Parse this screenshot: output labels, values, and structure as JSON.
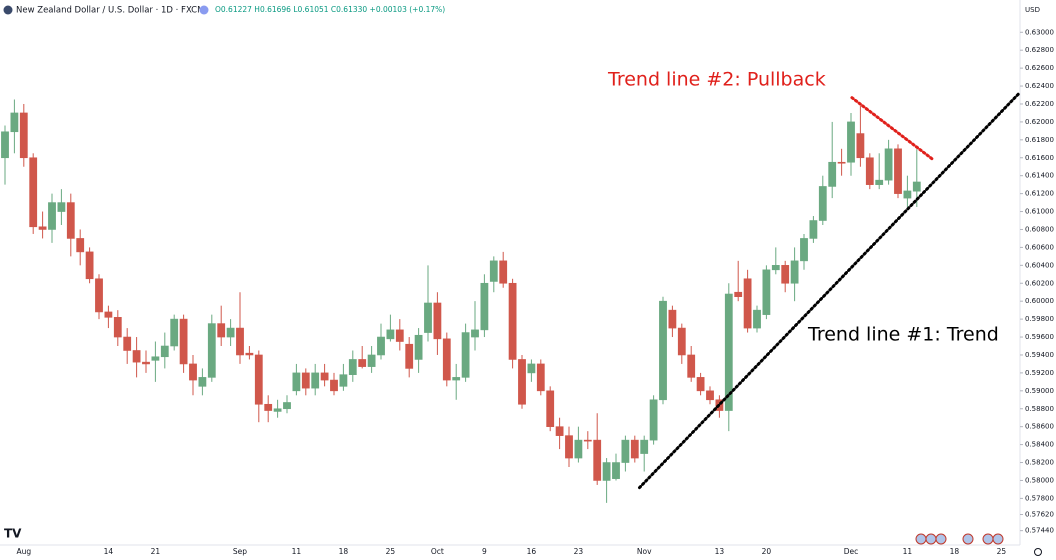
{
  "chart_data": {
    "type": "candlestick",
    "title": "New Zealand Dollar / U.S. Dollar · 1D · FXCM",
    "subtitle": "O0.61227 H0.61696 L0.61051 C0.61330 +0.00103 (+0.17%)",
    "currency": "USD",
    "up_color": "#6aa981",
    "down_color": "#d0574b",
    "grid": false,
    "categories": [
      null,
      null,
      "Aug",
      null,
      null,
      null,
      null,
      null,
      null,
      null,
      null,
      "14",
      null,
      null,
      null,
      null,
      "21",
      null,
      null,
      null,
      null,
      null,
      null,
      null,
      null,
      "Sep",
      null,
      null,
      null,
      null,
      null,
      "11",
      null,
      null,
      null,
      null,
      "18",
      null,
      null,
      null,
      null,
      "25",
      null,
      null,
      null,
      null,
      "Oct",
      null,
      null,
      null,
      null,
      "9",
      null,
      null,
      null,
      null,
      "16",
      null,
      null,
      null,
      null,
      "23",
      null,
      null,
      null,
      null,
      null,
      null,
      "Nov",
      null,
      null,
      null,
      null,
      null,
      null,
      null,
      "13",
      null,
      null,
      null,
      null,
      "20",
      null,
      null,
      null,
      null,
      null,
      null,
      null,
      null,
      "Dec",
      null,
      null,
      null,
      null,
      null,
      "11",
      null,
      null,
      null,
      null,
      "18",
      null,
      null,
      null,
      null,
      "25"
    ],
    "open": [
      0.616,
      0.6189,
      0.621,
      0.616,
      0.6083,
      0.608,
      0.61,
      0.611,
      0.607,
      0.6055,
      0.6025,
      0.5988,
      0.5982,
      0.596,
      0.5945,
      0.5932,
      0.5934,
      0.5938,
      0.595,
      0.598,
      0.593,
      0.5905,
      0.5915,
      0.5975,
      0.596,
      0.597,
      0.5942,
      0.594,
      0.5885,
      0.5877,
      0.588,
      0.59,
      0.592,
      0.5903,
      0.592,
      0.5912,
      0.5905,
      0.5918,
      0.5935,
      0.5927,
      0.594,
      0.5958,
      0.5968,
      0.5952,
      0.5935,
      0.5965,
      0.5998,
      0.5958,
      0.5912,
      0.5915,
      0.596,
      0.5968,
      0.6022,
      0.6045,
      0.602,
      0.5935,
      0.592,
      0.593,
      0.59,
      0.586,
      0.585,
      0.5825,
      0.5845,
      0.5845,
      0.58,
      0.5802,
      0.582,
      0.5845,
      0.583,
      0.5845,
      0.589,
      0.599,
      0.597,
      0.594,
      0.5915,
      0.59,
      0.589,
      0.5878,
      0.601,
      0.6025,
      0.597,
      0.5985,
      0.6035,
      0.604,
      0.602,
      0.6045,
      0.607,
      0.609,
      0.6128,
      0.6155,
      0.6155,
      0.6187,
      0.616,
      0.613,
      0.6135,
      0.617,
      0.6115,
      0.61227,
      null,
      null,
      null,
      null,
      null,
      null,
      null,
      null,
      null
    ],
    "high": [
      0.6196,
      0.6225,
      0.622,
      0.6165,
      0.61,
      0.612,
      0.6125,
      0.612,
      0.608,
      0.606,
      0.603,
      0.5995,
      0.599,
      0.597,
      0.596,
      0.5945,
      0.5955,
      0.5965,
      0.5985,
      0.5985,
      0.594,
      0.5925,
      0.5985,
      0.5995,
      0.598,
      0.601,
      0.595,
      0.5945,
      0.5895,
      0.589,
      0.5895,
      0.593,
      0.5925,
      0.593,
      0.593,
      0.592,
      0.593,
      0.5945,
      0.595,
      0.595,
      0.5975,
      0.5985,
      0.598,
      0.596,
      0.597,
      0.604,
      0.601,
      0.5965,
      0.593,
      0.5975,
      0.6,
      0.603,
      0.605,
      0.6055,
      0.6025,
      0.594,
      0.5935,
      0.5935,
      0.5905,
      0.587,
      0.586,
      0.586,
      0.5855,
      0.5875,
      0.5825,
      0.583,
      0.585,
      0.585,
      0.585,
      0.5895,
      0.6005,
      0.5995,
      0.5975,
      0.595,
      0.592,
      0.5905,
      0.5895,
      0.602,
      0.6045,
      0.6035,
      0.5995,
      0.604,
      0.606,
      0.6045,
      0.606,
      0.6075,
      0.6095,
      0.614,
      0.62,
      0.617,
      0.621,
      0.6218,
      0.6165,
      0.6165,
      0.618,
      0.6175,
      0.614,
      0.61696,
      null,
      null,
      null,
      null,
      null,
      null,
      null,
      null,
      null
    ],
    "low": [
      0.613,
      0.6165,
      0.615,
      0.6075,
      0.607,
      0.6065,
      0.6085,
      0.605,
      0.604,
      0.602,
      0.598,
      0.597,
      0.595,
      0.593,
      0.5915,
      0.592,
      0.591,
      0.5925,
      0.5945,
      0.592,
      0.5895,
      0.5895,
      0.591,
      0.595,
      0.595,
      0.593,
      0.5935,
      0.5865,
      0.5865,
      0.587,
      0.5875,
      0.5895,
      0.5895,
      0.5895,
      0.5905,
      0.5895,
      0.59,
      0.591,
      0.5925,
      0.592,
      0.5935,
      0.5955,
      0.5945,
      0.5915,
      0.592,
      0.5955,
      0.594,
      0.5905,
      0.589,
      0.591,
      0.5945,
      0.596,
      0.601,
      0.6015,
      0.5925,
      0.588,
      0.591,
      0.5895,
      0.5855,
      0.5835,
      0.5815,
      0.582,
      0.5835,
      0.5795,
      0.5775,
      0.58,
      0.581,
      0.582,
      0.581,
      0.584,
      0.5885,
      0.596,
      0.593,
      0.591,
      0.5895,
      0.5885,
      0.587,
      0.5855,
      0.6,
      0.5965,
      0.5965,
      0.598,
      0.603,
      0.601,
      0.6,
      0.6035,
      0.6065,
      0.6085,
      0.6115,
      0.614,
      0.614,
      0.615,
      0.6125,
      0.6125,
      0.613,
      0.6115,
      0.6105,
      0.61051,
      null,
      null,
      null,
      null,
      null,
      null,
      null,
      null,
      null
    ],
    "close": [
      0.6189,
      0.621,
      0.616,
      0.6083,
      0.608,
      0.611,
      0.611,
      0.607,
      0.6055,
      0.6025,
      0.5988,
      0.5982,
      0.596,
      0.5945,
      0.5932,
      0.593,
      0.5938,
      0.595,
      0.598,
      0.593,
      0.5912,
      0.5915,
      0.5975,
      0.596,
      0.597,
      0.594,
      0.594,
      0.5885,
      0.5878,
      0.588,
      0.5887,
      0.592,
      0.5903,
      0.592,
      0.5912,
      0.59,
      0.5918,
      0.5935,
      0.5927,
      0.594,
      0.596,
      0.5968,
      0.5955,
      0.5925,
      0.5962,
      0.5998,
      0.5958,
      0.5912,
      0.5915,
      0.5965,
      0.5968,
      0.602,
      0.6045,
      0.602,
      0.5935,
      0.5885,
      0.593,
      0.59,
      0.586,
      0.585,
      0.5825,
      0.5845,
      0.5844,
      0.58,
      0.582,
      0.582,
      0.5845,
      0.5825,
      0.5845,
      0.589,
      0.6,
      0.597,
      0.594,
      0.5915,
      0.59,
      0.589,
      0.5878,
      0.6008,
      0.6005,
      0.597,
      0.599,
      0.6035,
      0.604,
      0.602,
      0.6045,
      0.607,
      0.609,
      0.6128,
      0.6155,
      0.6154,
      0.62,
      0.616,
      0.613,
      0.6135,
      0.617,
      0.612,
      0.6123,
      0.6133,
      null,
      null,
      null,
      null,
      null,
      null,
      null,
      null,
      null
    ],
    "ylim": [
      0.5728,
      0.6336
    ],
    "yticks": [
      {
        "value": 0.5744,
        "label": "0.57440"
      },
      {
        "value": 0.5762,
        "label": "0.57620"
      },
      {
        "value": 0.578,
        "label": "0.57800"
      },
      {
        "value": 0.58,
        "label": "0.58000"
      },
      {
        "value": 0.582,
        "label": "0.58200"
      },
      {
        "value": 0.584,
        "label": "0.58400"
      },
      {
        "value": 0.586,
        "label": "0.58600"
      },
      {
        "value": 0.588,
        "label": "0.58800"
      },
      {
        "value": 0.59,
        "label": "0.59000"
      },
      {
        "value": 0.592,
        "label": "0.59200"
      },
      {
        "value": 0.594,
        "label": "0.59400"
      },
      {
        "value": 0.596,
        "label": "0.59600"
      },
      {
        "value": 0.598,
        "label": "0.59800"
      },
      {
        "value": 0.6,
        "label": "0.60000"
      },
      {
        "value": 0.602,
        "label": "0.60200"
      },
      {
        "value": 0.604,
        "label": "0.60400"
      },
      {
        "value": 0.606,
        "label": "0.60600"
      },
      {
        "value": 0.608,
        "label": "0.60800"
      },
      {
        "value": 0.61,
        "label": "0.61000"
      },
      {
        "value": 0.612,
        "label": "0.61200"
      },
      {
        "value": 0.614,
        "label": "0.61400"
      },
      {
        "value": 0.616,
        "label": "0.61600"
      },
      {
        "value": 0.618,
        "label": "0.61800"
      },
      {
        "value": 0.62,
        "label": "0.62000"
      },
      {
        "value": 0.622,
        "label": "0.62200"
      },
      {
        "value": 0.624,
        "label": "0.62400"
      },
      {
        "value": 0.626,
        "label": "0.62600"
      },
      {
        "value": 0.628,
        "label": "0.62800"
      },
      {
        "value": 0.63,
        "label": "0.63000"
      }
    ],
    "trend_lines": [
      {
        "label": "Trend line #1: Trend",
        "color": "#000000",
        "x": [
          67.5,
          107.8
        ],
        "y": [
          0.5792,
          0.6231
        ]
      },
      {
        "label": "Trend line #2: Pullback",
        "color": "#e0201b",
        "x": [
          90.1,
          98.6
        ],
        "y": [
          0.6227,
          0.6159
        ]
      }
    ]
  }
}
